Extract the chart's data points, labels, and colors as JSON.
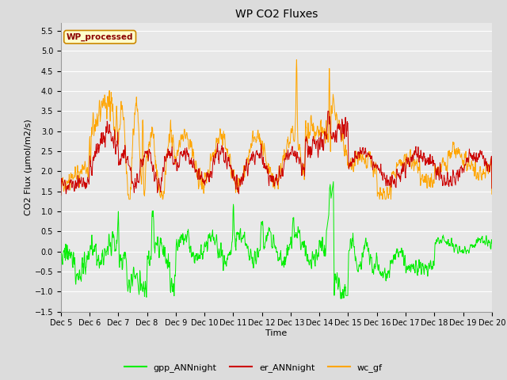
{
  "title": "WP CO2 Fluxes",
  "xlabel": "Time",
  "ylabel": "CO2 Flux (μmol/m2/s)",
  "ylim": [
    -1.5,
    5.7
  ],
  "yticks": [
    -1.5,
    -1.0,
    -0.5,
    0.0,
    0.5,
    1.0,
    1.5,
    2.0,
    2.5,
    3.0,
    3.5,
    4.0,
    4.5,
    5.0,
    5.5
  ],
  "xticklabels": [
    "Dec 5",
    "Dec 6",
    "Dec 7",
    "Dec 8",
    "Dec 9",
    "Dec 10",
    "Dec 11",
    "Dec 12",
    "Dec 13",
    "Dec 14",
    "Dec 15",
    "Dec 16",
    "Dec 17",
    "Dec 18",
    "Dec 19",
    "Dec 20"
  ],
  "legend_labels": [
    "gpp_ANNnight",
    "er_ANNnight",
    "wc_gf"
  ],
  "legend_colors": [
    "#00ee00",
    "#cc0000",
    "#ffa500"
  ],
  "inset_label": "WP_processed",
  "inset_bg": "#ffffcc",
  "inset_border": "#cc8800",
  "inset_text_color": "#8b0000",
  "fig_bg": "#dcdcdc",
  "plot_bg": "#e8e8e8",
  "grid_color": "#ffffff",
  "gpp_color": "#00ee00",
  "er_color": "#cc0000",
  "wc_color": "#ffa500",
  "n_points": 1500,
  "title_fontsize": 10,
  "tick_fontsize": 7,
  "label_fontsize": 8,
  "legend_fontsize": 8
}
